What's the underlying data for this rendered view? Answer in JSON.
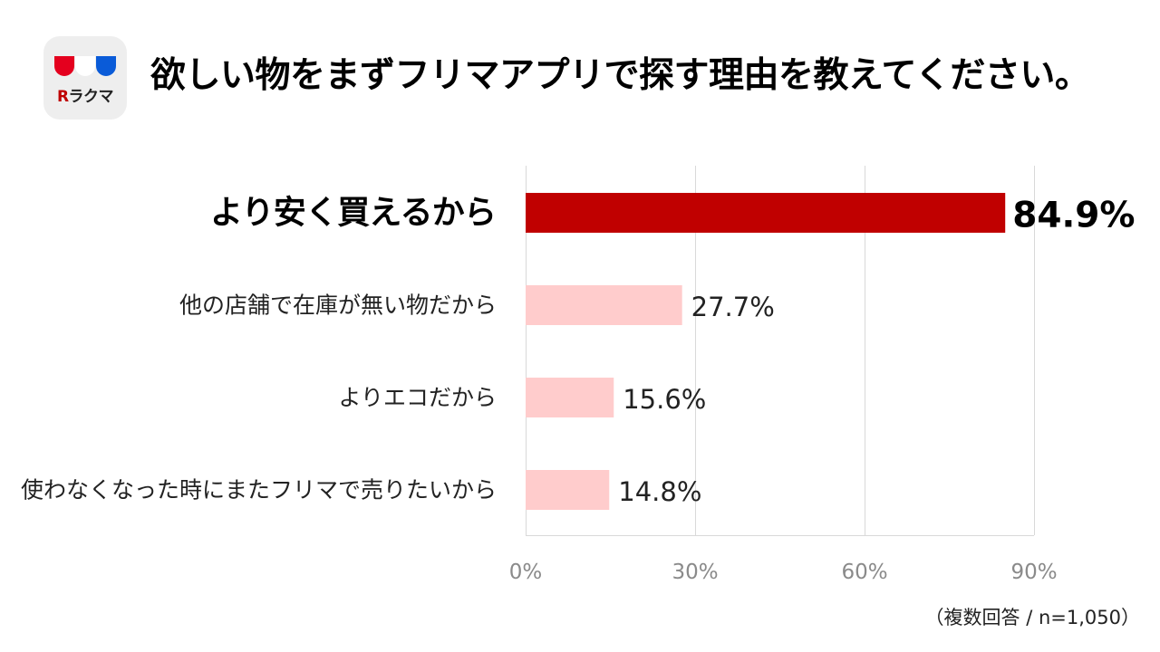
{
  "brand": {
    "wordmark_prefix": "R",
    "wordmark_text": "ラクマ",
    "colors": {
      "red": "#e4001e",
      "white": "#ffffff",
      "blue": "#0a5bd8"
    }
  },
  "title": "欲しい物をまずフリマアプリで探す理由を教えてください。",
  "note": "（複数回答 / n=1,050）",
  "chart_data": {
    "type": "bar",
    "orientation": "horizontal",
    "categories": [
      "より安く買えるから",
      "他の店舗で在庫が無い物だから",
      "よりエコだから",
      "使わなくなった時にまたフリマで売りたいから"
    ],
    "values": [
      84.9,
      27.7,
      15.6,
      14.8
    ],
    "value_labels": [
      "84.9%",
      "27.7%",
      "15.6%",
      "14.8%"
    ],
    "highlight_index": 0,
    "xlim": [
      0,
      90
    ],
    "x_ticks": [
      0,
      30,
      60,
      90
    ],
    "x_tick_labels": [
      "0%",
      "30%",
      "60%",
      "90%"
    ],
    "grid": true,
    "legend": "none",
    "colors": {
      "highlight": "#c00000",
      "normal": "#ffcccc",
      "grid": "#d9d9d9"
    }
  }
}
